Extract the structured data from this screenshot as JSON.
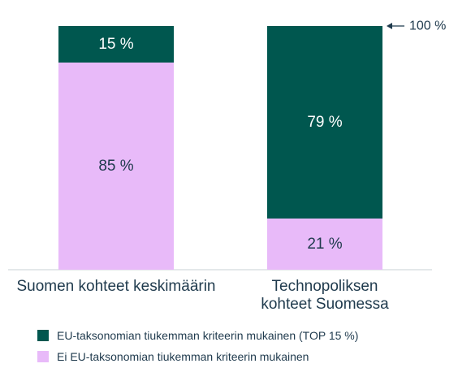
{
  "chart_data": {
    "type": "bar",
    "stacked": true,
    "categories": [
      "Suomen kohteet keskimäärin",
      "Technopoliksen kohteet Suomessa"
    ],
    "category_lines": [
      [
        "Suomen kohteet keskimäärin"
      ],
      [
        "Technopoliksen",
        "kohteet Suomessa"
      ]
    ],
    "series": [
      {
        "name": "EU-taksonomian tiukemman kriteerin mukainen (TOP 15 %)",
        "values": [
          15,
          79
        ],
        "labels": [
          "15 %",
          "79 %"
        ],
        "color": "#00574f",
        "label_color": "#ffffff"
      },
      {
        "name": "Ei EU-taksonomian tiukemman kriteerin mukainen",
        "values": [
          85,
          21
        ],
        "labels": [
          "85 %",
          "21 %"
        ],
        "color": "#e8baf9",
        "label_color": "#1f3a4d"
      }
    ],
    "ylim": [
      0,
      100
    ],
    "annotation": "100 %",
    "legend_position": "bottom-left",
    "grid": false
  }
}
